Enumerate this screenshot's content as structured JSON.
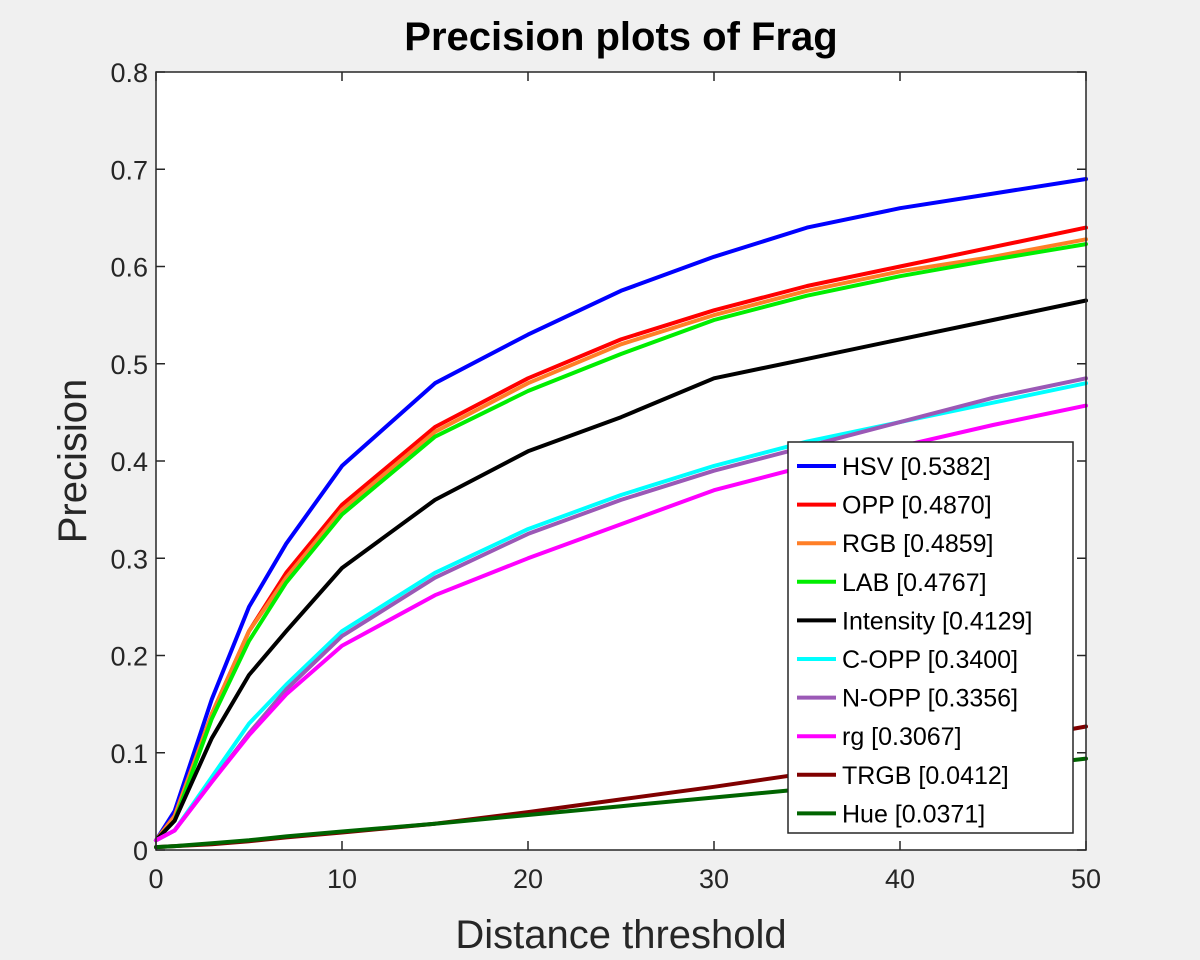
{
  "chart_data": {
    "type": "line",
    "title": "Precision plots of Frag",
    "xlabel": "Distance threshold",
    "ylabel": "Precision",
    "xlim": [
      0,
      50
    ],
    "ylim": [
      0,
      0.8
    ],
    "xticks": [
      0,
      10,
      20,
      30,
      40,
      50
    ],
    "xtick_labels": [
      "0",
      "10",
      "20",
      "30",
      "40",
      "50"
    ],
    "yticks": [
      0,
      0.1,
      0.2,
      0.3,
      0.4,
      0.5,
      0.6,
      0.7,
      0.8
    ],
    "ytick_labels": [
      "0",
      "0.1",
      "0.2",
      "0.3",
      "0.4",
      "0.5",
      "0.6",
      "0.7",
      "0.8"
    ],
    "grid": false,
    "legend_position": "bottom-right",
    "x": [
      0,
      1,
      3,
      5,
      7,
      10,
      15,
      20,
      25,
      30,
      35,
      40,
      45,
      50
    ],
    "series": [
      {
        "name": "HSV [0.5382]",
        "color": "#0000ff",
        "values": [
          0.01,
          0.04,
          0.155,
          0.25,
          0.315,
          0.395,
          0.48,
          0.53,
          0.575,
          0.61,
          0.64,
          0.66,
          0.675,
          0.69
        ]
      },
      {
        "name": "OPP [0.4870]",
        "color": "#ff0000",
        "values": [
          0.01,
          0.035,
          0.14,
          0.225,
          0.285,
          0.355,
          0.435,
          0.485,
          0.525,
          0.555,
          0.58,
          0.6,
          0.62,
          0.64
        ]
      },
      {
        "name": "RGB [0.4859]",
        "color": "#ff7f27",
        "values": [
          0.01,
          0.035,
          0.14,
          0.225,
          0.28,
          0.35,
          0.43,
          0.48,
          0.52,
          0.55,
          0.575,
          0.595,
          0.61,
          0.628
        ]
      },
      {
        "name": "LAB [0.4767]",
        "color": "#00ee00",
        "values": [
          0.01,
          0.03,
          0.135,
          0.215,
          0.275,
          0.345,
          0.425,
          0.472,
          0.51,
          0.545,
          0.57,
          0.59,
          0.607,
          0.623
        ]
      },
      {
        "name": "Intensity [0.4129]",
        "color": "#000000",
        "values": [
          0.01,
          0.03,
          0.115,
          0.18,
          0.225,
          0.29,
          0.36,
          0.41,
          0.445,
          0.485,
          0.505,
          0.525,
          0.545,
          0.565
        ]
      },
      {
        "name": "C-OPP [0.3400]",
        "color": "#00ffff",
        "values": [
          0.01,
          0.02,
          0.075,
          0.13,
          0.17,
          0.225,
          0.285,
          0.33,
          0.365,
          0.395,
          0.42,
          0.44,
          0.46,
          0.48
        ]
      },
      {
        "name": "N-OPP [0.3356]",
        "color": "#9b59b6",
        "values": [
          0.01,
          0.02,
          0.07,
          0.12,
          0.165,
          0.22,
          0.28,
          0.325,
          0.36,
          0.39,
          0.415,
          0.44,
          0.465,
          0.485
        ]
      },
      {
        "name": "rg [0.3067]",
        "color": "#ff00ff",
        "values": [
          0.01,
          0.02,
          0.07,
          0.118,
          0.16,
          0.21,
          0.262,
          0.3,
          0.335,
          0.37,
          0.395,
          0.415,
          0.437,
          0.457
        ]
      },
      {
        "name": "TRGB [0.0412]",
        "color": "#800000",
        "values": [
          0.003,
          0.004,
          0.006,
          0.009,
          0.013,
          0.018,
          0.027,
          0.039,
          0.052,
          0.065,
          0.079,
          0.095,
          0.11,
          0.127
        ]
      },
      {
        "name": "Hue [0.0371]",
        "color": "#006400",
        "values": [
          0.003,
          0.004,
          0.007,
          0.01,
          0.014,
          0.019,
          0.027,
          0.036,
          0.045,
          0.054,
          0.063,
          0.073,
          0.083,
          0.094
        ]
      }
    ]
  }
}
